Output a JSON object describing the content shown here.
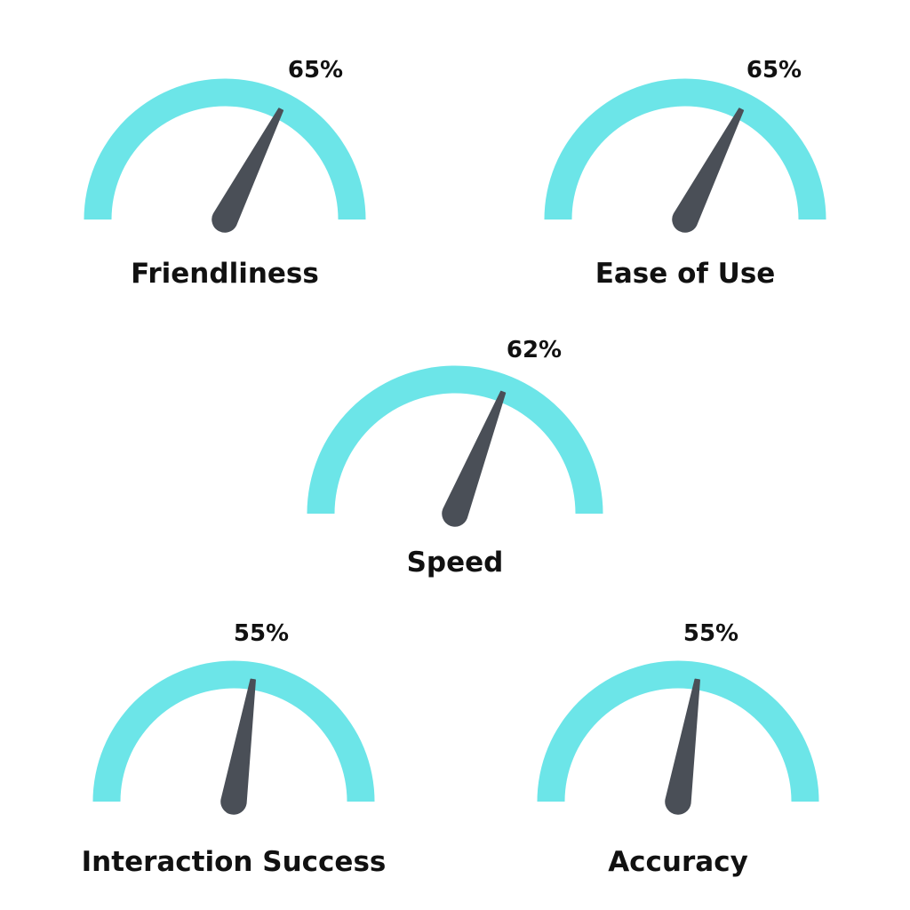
{
  "colors": {
    "arc": "#6ce5e8",
    "needle": "#4a4f57",
    "text": "#111111"
  },
  "chart_data": [
    {
      "type": "gauge",
      "label": "Friendliness",
      "value": 65,
      "value_label": "65%",
      "range": [
        0,
        100
      ]
    },
    {
      "type": "gauge",
      "label": "Ease of Use",
      "value": 65,
      "value_label": "65%",
      "range": [
        0,
        100
      ]
    },
    {
      "type": "gauge",
      "label": "Speed",
      "value": 62,
      "value_label": "62%",
      "range": [
        0,
        100
      ]
    },
    {
      "type": "gauge",
      "label": "Interaction Success",
      "value": 55,
      "value_label": "55%",
      "range": [
        0,
        100
      ]
    },
    {
      "type": "gauge",
      "label": "Accuracy",
      "value": 55,
      "value_label": "55%",
      "range": [
        0,
        100
      ]
    }
  ]
}
